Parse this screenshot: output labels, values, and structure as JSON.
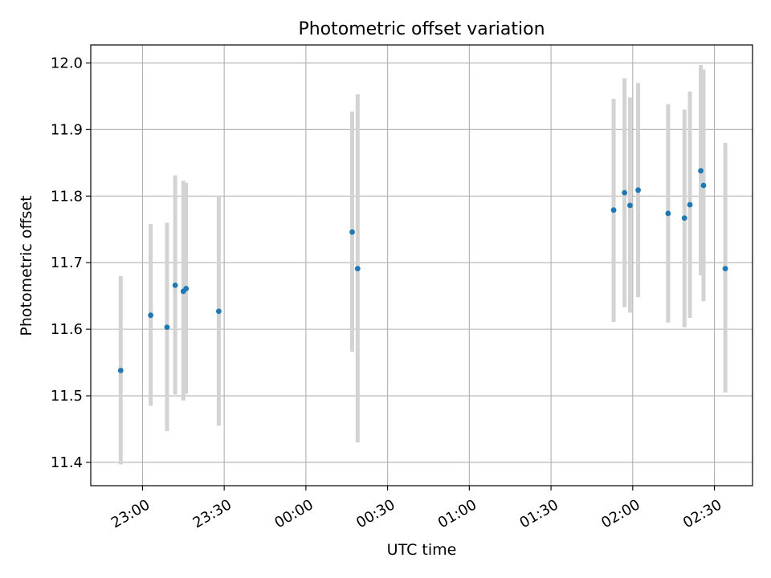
{
  "chart_data": {
    "type": "scatter",
    "title": "Photometric offset variation",
    "xlabel": "UTC time",
    "ylabel": "Photometric offset",
    "grid": true,
    "legend": "none",
    "x_axis": {
      "ticks": [
        "22:30",
        "23:00",
        "23:30",
        "00:00",
        "00:30",
        "01:00",
        "01:30",
        "02:00",
        "02:30"
      ],
      "tick_labels": [
        "",
        "23:00",
        "23:30",
        "00:00",
        "00:30",
        "01:00",
        "01:30",
        "02:00",
        "02:30"
      ],
      "range": [
        "22:41",
        "02:44"
      ]
    },
    "y_axis": {
      "ticks": [
        11.4,
        11.5,
        11.6,
        11.7,
        11.8,
        11.9,
        12.0
      ],
      "tick_labels": [
        "11.4",
        "11.5",
        "11.6",
        "11.7",
        "11.8",
        "11.9",
        "12.0"
      ],
      "range": [
        11.365,
        12.027
      ]
    },
    "colors": {
      "point": "#1f77b4",
      "errorbar": "#d3d3d3",
      "grid": "#b0b0b0"
    },
    "points": [
      {
        "x": "22:52",
        "y": 11.538,
        "ylow": 11.397,
        "yhigh": 11.68
      },
      {
        "x": "23:03",
        "y": 11.621,
        "ylow": 11.485,
        "yhigh": 11.758
      },
      {
        "x": "23:09",
        "y": 11.603,
        "ylow": 11.447,
        "yhigh": 11.76
      },
      {
        "x": "23:12",
        "y": 11.666,
        "ylow": 11.502,
        "yhigh": 11.831
      },
      {
        "x": "23:15",
        "y": 11.657,
        "ylow": 11.493,
        "yhigh": 11.823
      },
      {
        "x": "23:16",
        "y": 11.661,
        "ylow": 11.503,
        "yhigh": 11.82
      },
      {
        "x": "23:28",
        "y": 11.627,
        "ylow": 11.455,
        "yhigh": 11.801
      },
      {
        "x": "00:17",
        "y": 11.746,
        "ylow": 11.566,
        "yhigh": 11.927
      },
      {
        "x": "00:19",
        "y": 11.691,
        "ylow": 11.43,
        "yhigh": 11.953
      },
      {
        "x": "01:53",
        "y": 11.779,
        "ylow": 11.611,
        "yhigh": 11.946
      },
      {
        "x": "01:57",
        "y": 11.805,
        "ylow": 11.633,
        "yhigh": 11.977
      },
      {
        "x": "01:59",
        "y": 11.786,
        "ylow": 11.625,
        "yhigh": 11.948
      },
      {
        "x": "02:02",
        "y": 11.809,
        "ylow": 11.648,
        "yhigh": 11.97
      },
      {
        "x": "02:13",
        "y": 11.774,
        "ylow": 11.61,
        "yhigh": 11.938
      },
      {
        "x": "02:19",
        "y": 11.767,
        "ylow": 11.603,
        "yhigh": 11.93
      },
      {
        "x": "02:21",
        "y": 11.787,
        "ylow": 11.617,
        "yhigh": 11.957
      },
      {
        "x": "02:25",
        "y": 11.838,
        "ylow": 11.681,
        "yhigh": 11.997
      },
      {
        "x": "02:26",
        "y": 11.816,
        "ylow": 11.642,
        "yhigh": 11.99
      },
      {
        "x": "02:34",
        "y": 11.691,
        "ylow": 11.505,
        "yhigh": 11.88
      }
    ]
  }
}
